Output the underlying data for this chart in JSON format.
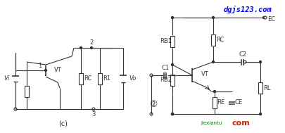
{
  "bg_color": "#ffffff",
  "line_color": "#333333",
  "watermark_text": "dgjs123.com",
  "watermark_color": "#0000ee",
  "watermark2_text": "jiexiantu",
  "watermark2_color": "#007700",
  "watermark3_text": "com",
  "watermark3_color": "#cc2200",
  "label_c": "(c)",
  "label_2": "②",
  "text_VT_c": "VT",
  "text_RC_c": "RC",
  "text_R1_c": "R1",
  "text_Vi": "Vi",
  "text_Vo": "Vo",
  "text_1": "1",
  "text_2": "2",
  "text_3": "3",
  "text_EC": "EC",
  "text_RB1": "RB1",
  "text_RC2": "RC",
  "text_C1": "C1",
  "text_C2": "C2",
  "text_RB2": "RB2",
  "text_RE": "RE",
  "text_CE": "CE",
  "text_RL": "RL",
  "text_VT2": "VT"
}
